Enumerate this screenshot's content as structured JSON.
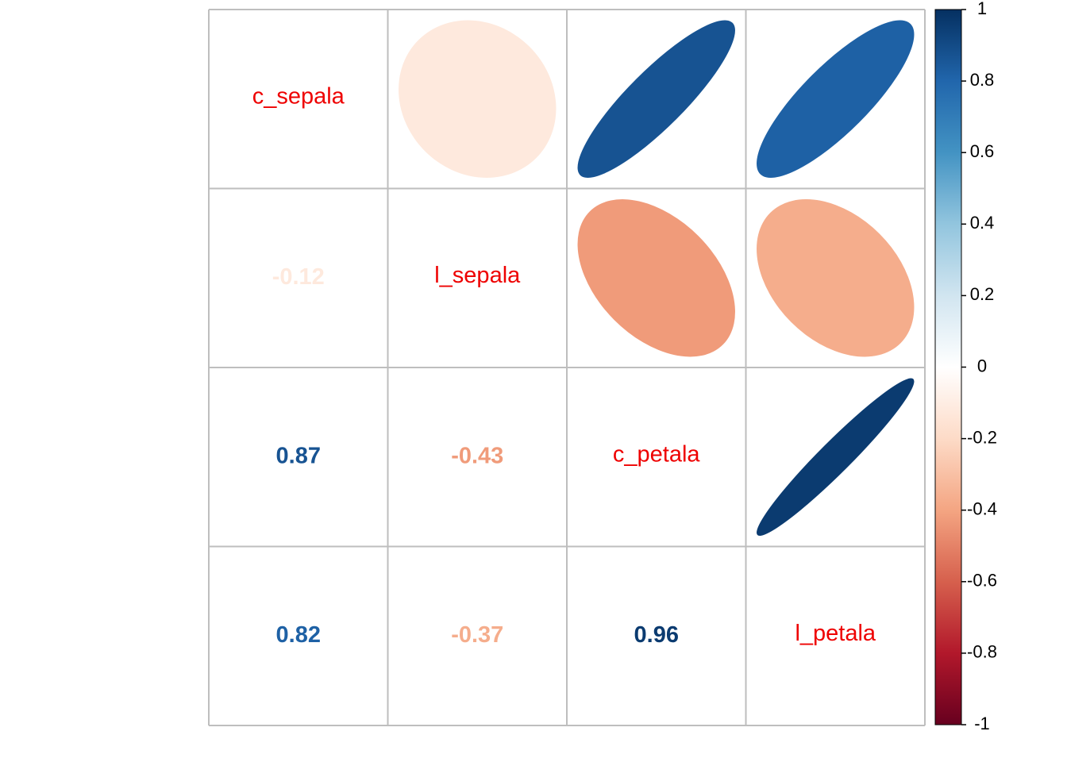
{
  "chart_data": {
    "type": "heatmap",
    "style": "correlation matrix (upper: ellipses, lower: numbers, diagonal: variable names)",
    "variables": [
      "c_sepala",
      "l_sepala",
      "c_petala",
      "l_petala"
    ],
    "matrix": [
      [
        1.0,
        -0.12,
        0.87,
        0.82
      ],
      [
        -0.12,
        1.0,
        -0.43,
        -0.37
      ],
      [
        0.87,
        -0.43,
        1.0,
        0.96
      ],
      [
        0.82,
        -0.37,
        0.96,
        1.0
      ]
    ],
    "lower_labels": [
      {
        "row": 1,
        "col": 0,
        "text": "-0.12"
      },
      {
        "row": 2,
        "col": 0,
        "text": "0.87"
      },
      {
        "row": 2,
        "col": 1,
        "text": "-0.43"
      },
      {
        "row": 3,
        "col": 0,
        "text": "0.82"
      },
      {
        "row": 3,
        "col": 1,
        "text": "-0.37"
      },
      {
        "row": 3,
        "col": 2,
        "text": "0.96"
      }
    ],
    "colorbar": {
      "range": [
        -1,
        1
      ],
      "ticks": [
        "1",
        "0.8",
        "0.6",
        "0.4",
        "0.2",
        "0",
        "-0.2",
        "-0.4",
        "-0.6",
        "-0.8",
        "-1"
      ],
      "position": "right"
    },
    "colors": {
      "diag_text": "#ee0000",
      "grid": "#bebebe",
      "palette": [
        "#67001F",
        "#B2182B",
        "#D6604D",
        "#F4A582",
        "#FDDBC7",
        "#FFFFFF",
        "#D1E5F0",
        "#92C5DE",
        "#4393C3",
        "#2166AC",
        "#053061"
      ]
    }
  }
}
